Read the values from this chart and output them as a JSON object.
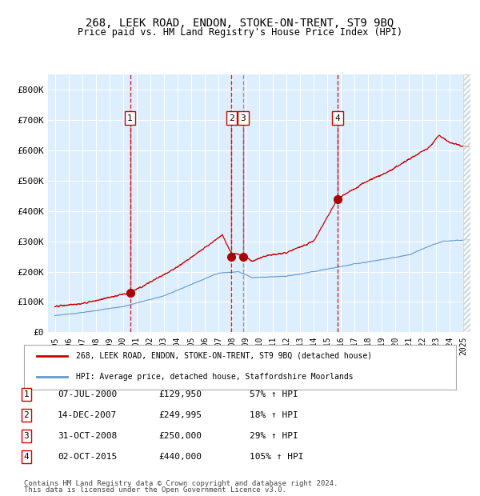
{
  "title": "268, LEEK ROAD, ENDON, STOKE-ON-TRENT, ST9 9BQ",
  "subtitle": "Price paid vs. HM Land Registry's House Price Index (HPI)",
  "xlabel": "",
  "ylabel": "",
  "ylim": [
    0,
    850000
  ],
  "yticks": [
    0,
    100000,
    200000,
    300000,
    400000,
    500000,
    600000,
    700000,
    800000
  ],
  "ytick_labels": [
    "£0",
    "£100K",
    "£200K",
    "£300K",
    "£400K",
    "£500K",
    "£600K",
    "£700K",
    "£800K"
  ],
  "background_color": "#ffffff",
  "plot_bg_color": "#ddeeff",
  "grid_color": "#ffffff",
  "hatch_color": "#cccccc",
  "red_line_color": "#cc0000",
  "blue_line_color": "#6699cc",
  "marker_color": "#aa0000",
  "dashed_red_color": "#cc0000",
  "dashed_gray_color": "#888888",
  "legend_box_color": "#ffffff",
  "legend_border_color": "#aaaaaa",
  "purchases": [
    {
      "date_num": 2000.52,
      "price": 129950,
      "label": "1"
    },
    {
      "date_num": 2007.96,
      "price": 249995,
      "label": "2"
    },
    {
      "date_num": 2008.83,
      "price": 250000,
      "label": "3"
    },
    {
      "date_num": 2015.75,
      "price": 440000,
      "label": "4"
    }
  ],
  "table_rows": [
    {
      "num": "1",
      "date": "07-JUL-2000",
      "price": "£129,950",
      "pct": "57% ↑ HPI"
    },
    {
      "num": "2",
      "date": "14-DEC-2007",
      "price": "£249,995",
      "pct": "18% ↑ HPI"
    },
    {
      "num": "3",
      "date": "31-OCT-2008",
      "price": "£250,000",
      "pct": "29% ↑ HPI"
    },
    {
      "num": "4",
      "date": "02-OCT-2015",
      "price": "£440,000",
      "pct": "105% ↑ HPI"
    }
  ],
  "legend_line1": "268, LEEK ROAD, ENDON, STOKE-ON-TRENT, ST9 9BQ (detached house)",
  "legend_line2": "HPI: Average price, detached house, Staffordshire Moorlands",
  "footer1": "Contains HM Land Registry data © Crown copyright and database right 2024.",
  "footer2": "This data is licensed under the Open Government Licence v3.0.",
  "xlim_start": 1994.5,
  "xlim_end": 2025.5,
  "xticks": [
    1995,
    1996,
    1997,
    1998,
    1999,
    2000,
    2001,
    2002,
    2003,
    2004,
    2005,
    2006,
    2007,
    2008,
    2009,
    2010,
    2011,
    2012,
    2013,
    2014,
    2015,
    2016,
    2017,
    2018,
    2019,
    2020,
    2021,
    2022,
    2023,
    2024,
    2025
  ]
}
